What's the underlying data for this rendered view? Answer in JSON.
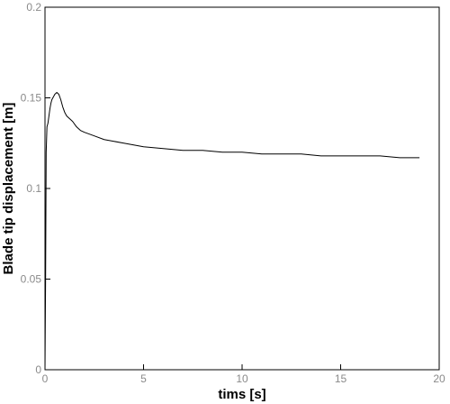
{
  "chart_data": {
    "type": "line",
    "title": "",
    "xlabel": "tims [s]",
    "ylabel": "Blade tip displacement [m]",
    "xlim": [
      0,
      20
    ],
    "ylim": [
      0,
      0.2
    ],
    "xticks": [
      0,
      5,
      10,
      15,
      20
    ],
    "xtick_labels": [
      "0",
      "5",
      "10",
      "15",
      "20"
    ],
    "yticks": [
      0,
      0.05,
      0.1,
      0.15,
      0.2
    ],
    "ytick_labels": [
      "0",
      "0.05",
      "0.1",
      "0.15",
      "0.2"
    ],
    "grid": false,
    "legend": "none",
    "line_color": "#000000",
    "series": [
      {
        "x": [
          0.0,
          0.03,
          0.06,
          0.1,
          0.15,
          0.2,
          0.25,
          0.3,
          0.35,
          0.4,
          0.5,
          0.6,
          0.7,
          0.8,
          0.9,
          1.0,
          1.1,
          1.2,
          1.4,
          1.6,
          1.8,
          2.0,
          2.5,
          3.0,
          3.5,
          4.0,
          4.5,
          5.0,
          6.0,
          7.0,
          8.0,
          9.0,
          10.0,
          11.0,
          12.0,
          13.0,
          14.0,
          15.0,
          16.0,
          17.0,
          18.0,
          19.0
        ],
        "y": [
          0.0,
          0.05,
          0.12,
          0.134,
          0.136,
          0.14,
          0.144,
          0.147,
          0.149,
          0.15,
          0.152,
          0.153,
          0.152,
          0.149,
          0.145,
          0.142,
          0.14,
          0.139,
          0.137,
          0.134,
          0.132,
          0.131,
          0.129,
          0.127,
          0.126,
          0.125,
          0.124,
          0.123,
          0.122,
          0.121,
          0.121,
          0.12,
          0.12,
          0.119,
          0.119,
          0.119,
          0.118,
          0.118,
          0.118,
          0.118,
          0.117,
          0.117
        ]
      }
    ]
  }
}
